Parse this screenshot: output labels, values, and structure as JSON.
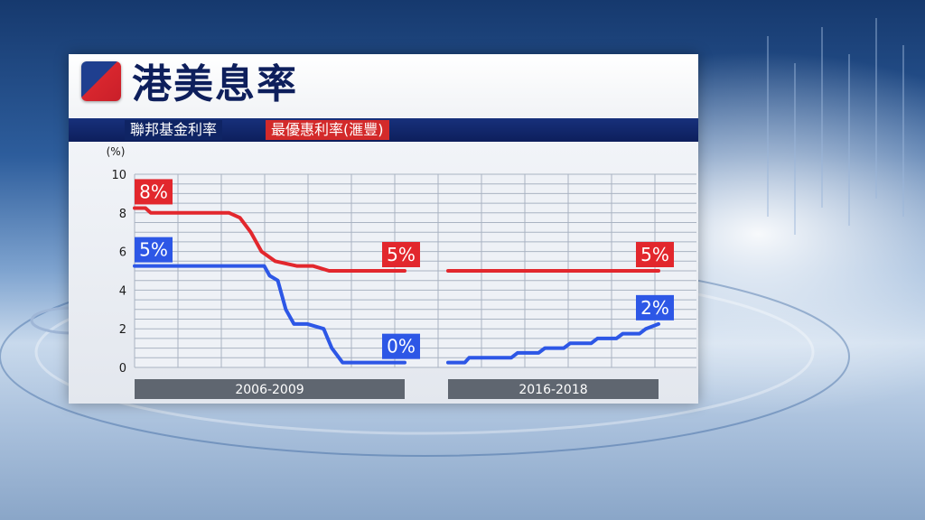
{
  "title": "港美息率",
  "legend": {
    "fed_label": "聯邦基金利率",
    "prime_label": "最優惠利率(滙豐)"
  },
  "colors": {
    "fed": "#2d57e6",
    "prime": "#e2272d",
    "title": "#0e1f5c",
    "legend_bg": "#0d1f5c"
  },
  "chart_data": {
    "type": "line",
    "ylabel": "(%)",
    "ylim": [
      0,
      10
    ],
    "yticks": [
      0,
      2,
      4,
      6,
      8,
      10
    ],
    "grid": true,
    "periods": [
      {
        "label": "2006-2009"
      },
      {
        "label": "2016-2018"
      }
    ],
    "series": [
      {
        "name": "聯邦基金利率",
        "color": "#2d57e6",
        "segments": [
          [
            [
              0,
              5.25
            ],
            [
              0.1,
              5.25
            ],
            [
              0.2,
              5.25
            ],
            [
              0.3,
              5.25
            ],
            [
              0.4,
              5.25
            ],
            [
              0.48,
              5.25
            ],
            [
              0.5,
              4.75
            ],
            [
              0.53,
              4.5
            ],
            [
              0.56,
              3.0
            ],
            [
              0.59,
              2.25
            ],
            [
              0.64,
              2.25
            ],
            [
              0.7,
              2.0
            ],
            [
              0.73,
              1.0
            ],
            [
              0.77,
              0.25
            ],
            [
              0.88,
              0.25
            ],
            [
              1.0,
              0.25
            ]
          ],
          [
            [
              0,
              0.25
            ],
            [
              0.08,
              0.25
            ],
            [
              0.1,
              0.5
            ],
            [
              0.3,
              0.5
            ],
            [
              0.33,
              0.75
            ],
            [
              0.43,
              0.75
            ],
            [
              0.46,
              1.0
            ],
            [
              0.55,
              1.0
            ],
            [
              0.58,
              1.25
            ],
            [
              0.68,
              1.25
            ],
            [
              0.71,
              1.5
            ],
            [
              0.8,
              1.5
            ],
            [
              0.83,
              1.75
            ],
            [
              0.91,
              1.75
            ],
            [
              0.94,
              2.0
            ],
            [
              1.0,
              2.25
            ]
          ]
        ],
        "labels": [
          {
            "segment": 0,
            "at": "start",
            "text": "5%"
          },
          {
            "segment": 0,
            "at": "end",
            "text": "0%"
          },
          {
            "segment": 1,
            "at": "end",
            "text": "2%"
          }
        ]
      },
      {
        "name": "最優惠利率(滙豐)",
        "color": "#e2272d",
        "segments": [
          [
            [
              0,
              8.25
            ],
            [
              0.04,
              8.25
            ],
            [
              0.06,
              8.0
            ],
            [
              0.35,
              8.0
            ],
            [
              0.39,
              7.75
            ],
            [
              0.43,
              7.0
            ],
            [
              0.47,
              6.0
            ],
            [
              0.52,
              5.5
            ],
            [
              0.6,
              5.25
            ],
            [
              0.66,
              5.25
            ],
            [
              0.72,
              5.0
            ],
            [
              0.82,
              5.0
            ],
            [
              1.0,
              5.0
            ]
          ],
          [
            [
              0,
              5.0
            ],
            [
              1.0,
              5.0
            ]
          ]
        ],
        "labels": [
          {
            "segment": 0,
            "at": "start",
            "text": "8%"
          },
          {
            "segment": 0,
            "at": "end",
            "text": "5%"
          },
          {
            "segment": 1,
            "at": "end",
            "text": "5%"
          }
        ]
      }
    ]
  }
}
